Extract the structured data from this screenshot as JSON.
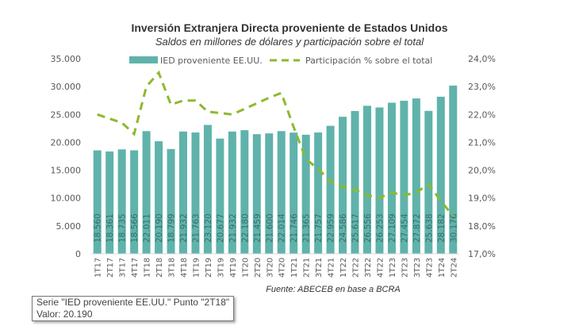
{
  "chart_data": {
    "type": "bar",
    "title": "Inversión Extranjera Directa proveniente de Estados Unidos",
    "subtitle": "Saldos en millones de dólares y participación sobre el total",
    "source": "Fuente: ABECEB en base a BCRA",
    "categories": [
      "1T17",
      "2T17",
      "3T17",
      "4T17",
      "1T18",
      "2T18",
      "3T18",
      "4T18",
      "1T19",
      "2T19",
      "3T19",
      "4T19",
      "1T20",
      "2T20",
      "3T20",
      "4T20",
      "1T21",
      "2T21",
      "3T21",
      "4T21",
      "1T22",
      "2T22",
      "3T22",
      "4T22",
      "1T23",
      "2T23",
      "3T23",
      "4T23",
      "1T24",
      "2T24"
    ],
    "series": [
      {
        "name": "IED proveniente EE.UU.",
        "type": "bar",
        "axis": "left",
        "color": "#5fb3ab",
        "values": [
          18560,
          18361,
          18735,
          18566,
          22011,
          20190,
          18799,
          21932,
          21763,
          23120,
          20677,
          21932,
          22180,
          21459,
          21600,
          22014,
          21746,
          21365,
          21757,
          22959,
          24586,
          25617,
          26556,
          26253,
          27109,
          27454,
          27872,
          25638,
          28182,
          30176
        ],
        "labels": [
          "18.560",
          "18.361",
          "18.735",
          "18.566",
          "22.011",
          "20.190",
          "18.799",
          "21.932",
          "21.763",
          "23.120",
          "20.677",
          "21.932",
          "22.180",
          "21.459",
          "21.600",
          "22.014",
          "21.746",
          "21.365",
          "21.757",
          "22.959",
          "24.586",
          "25.617",
          "26.556",
          "26.253",
          "27.109",
          "27.454",
          "27.872",
          "25.638",
          "28.182",
          "30.176"
        ]
      },
      {
        "name": "Participación % sobre el total",
        "type": "line",
        "axis": "right",
        "color": "#8db92e",
        "dash": "dashed",
        "values": [
          22.0,
          21.85,
          21.7,
          21.3,
          23.0,
          23.5,
          22.35,
          22.5,
          22.5,
          22.1,
          22.05,
          22.0,
          22.2,
          22.4,
          22.6,
          22.77,
          21.55,
          20.4,
          20.05,
          19.6,
          19.4,
          19.3,
          19.1,
          19.0,
          19.2,
          19.1,
          19.2,
          19.5,
          18.9,
          18.35
        ]
      }
    ],
    "yleft": {
      "range": [
        0,
        35000
      ],
      "ticks": [
        "0",
        "5.000",
        "10.000",
        "15.000",
        "20.000",
        "25.000",
        "30.000",
        "35.000"
      ]
    },
    "yright": {
      "range": [
        17,
        24
      ],
      "ticks": [
        "17,0%",
        "18,0%",
        "19,0%",
        "20,0%",
        "21,0%",
        "22,0%",
        "23,0%",
        "24,0%"
      ]
    },
    "grid": false,
    "legend": "top"
  },
  "tooltip": {
    "line1": "Serie \"IED proveniente EE.UU.\" Punto \"2T18\"",
    "line2": "Valor: 20.190"
  }
}
